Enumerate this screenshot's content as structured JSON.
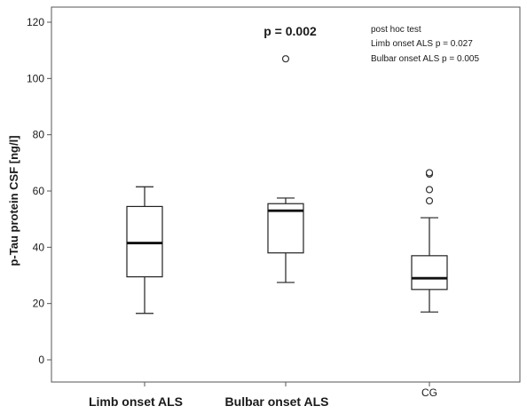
{
  "chart_data": {
    "type": "box",
    "ylabel": "p-Tau protein CSF [ng/l]",
    "xlabel": "",
    "ylim": [
      -8,
      125
    ],
    "yticks": [
      0,
      20,
      40,
      60,
      80,
      100,
      120
    ],
    "grid": false,
    "categories": [
      "Limb onset ALS",
      "Bulbar onset ALS",
      "CG"
    ],
    "boxes": [
      {
        "category": "Limb onset ALS",
        "min": 16.5,
        "q1": 29.5,
        "median": 41.5,
        "q3": 54.5,
        "max": 61.5,
        "outliers": []
      },
      {
        "category": "Bulbar onset ALS",
        "min": 27.5,
        "q1": 38.0,
        "median": 53.0,
        "q3": 55.5,
        "max": 57.5,
        "outliers": [
          107
        ]
      },
      {
        "category": "CG",
        "min": 17.0,
        "q1": 25.0,
        "median": 29.0,
        "q3": 37.0,
        "max": 50.5,
        "outliers": [
          56.5,
          60.5,
          66.0,
          66.5
        ]
      }
    ],
    "annotations": {
      "pvalue": "p = 0.002",
      "posthoc_title": "post hoc test",
      "posthoc_lines": [
        "Limb onset ALS p = 0.027",
        "Bulbar onset ALS p = 0.005"
      ]
    }
  }
}
